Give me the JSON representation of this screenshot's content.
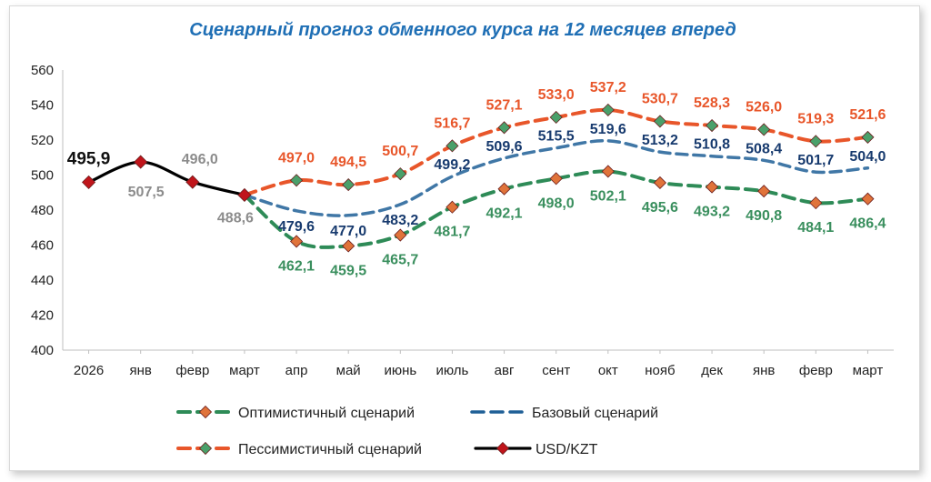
{
  "chart_data": {
    "type": "line",
    "title": "Сценарный прогноз обменного курса на 12 месяцев вперед",
    "categories": [
      "2026",
      "янв",
      "февр",
      "март",
      "апр",
      "май",
      "июнь",
      "июль",
      "авг",
      "сент",
      "окт",
      "нояб",
      "дек",
      "янв",
      "февр",
      "март"
    ],
    "ylim": [
      400,
      560
    ],
    "yticks": [
      "400",
      "420",
      "440",
      "460",
      "480",
      "500",
      "520",
      "540",
      "560"
    ],
    "grid": false,
    "legend_position": "bottom",
    "series": [
      {
        "name": "Оптимистичный сценарий",
        "color": "#2e8b57",
        "marker_color": "#e0733a",
        "style": "dashed",
        "values": [
          null,
          null,
          null,
          488.6,
          462.1,
          459.5,
          465.7,
          481.7,
          492.1,
          498.0,
          502.1,
          495.6,
          493.2,
          490.8,
          484.1,
          486.4
        ],
        "labels": [
          "",
          "",
          "",
          "",
          "462,1",
          "459,5",
          "465,7",
          "481,7",
          "492,1",
          "498,0",
          "502,1",
          "495,6",
          "493,2",
          "490,8",
          "484,1",
          "486,4"
        ]
      },
      {
        "name": "Базовый сценарий",
        "color": "#1f5f96",
        "style": "dashed",
        "values": [
          null,
          null,
          null,
          488.6,
          479.6,
          477.0,
          483.2,
          499.2,
          509.6,
          515.5,
          519.6,
          513.2,
          510.8,
          508.4,
          501.7,
          504.0
        ],
        "labels": [
          "",
          "",
          "",
          "",
          "479,6",
          "477,0",
          "483,2",
          "499,2",
          "509,6",
          "515,5",
          "519,6",
          "513,2",
          "510,8",
          "508,4",
          "501,7",
          "504,0"
        ]
      },
      {
        "name": "Пессимистичный сценарий",
        "color": "#e8562a",
        "marker_color": "#4aa06a",
        "style": "dashed",
        "values": [
          null,
          null,
          null,
          488.6,
          497.0,
          494.5,
          500.7,
          516.7,
          527.1,
          533.0,
          537.2,
          530.7,
          528.3,
          526.0,
          519.3,
          521.6
        ],
        "labels": [
          "",
          "",
          "",
          "",
          "497,0",
          "494,5",
          "500,7",
          "516,7",
          "527,1",
          "533,0",
          "537,2",
          "530,7",
          "528,3",
          "526,0",
          "519,3",
          "521,6"
        ]
      },
      {
        "name": "USD/KZT",
        "color": "#000000",
        "marker_color": "#c0151b",
        "style": "solid",
        "values": [
          495.9,
          507.5,
          496.0,
          488.6,
          null,
          null,
          null,
          null,
          null,
          null,
          null,
          null,
          null,
          null,
          null,
          null
        ],
        "labels": [
          "495,9",
          "507,5",
          "496,0",
          "488,6",
          "",
          "",
          "",
          "",
          "",
          "",
          "",
          "",
          "",
          "",
          "",
          ""
        ]
      }
    ]
  }
}
